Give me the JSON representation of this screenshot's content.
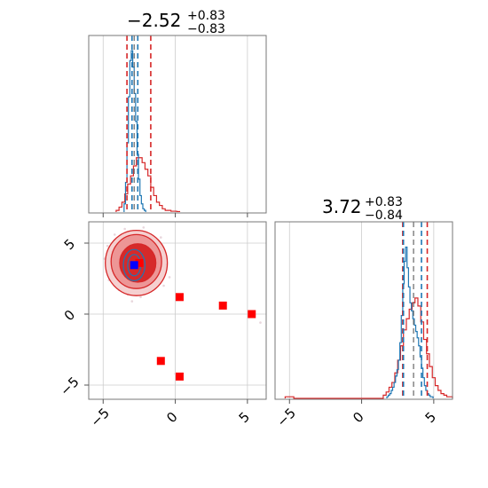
{
  "chart_data": {
    "type": "corner",
    "panels": {
      "hist_x": {
        "title": {
          "main": "−2.52",
          "sup": "+0.83",
          "sub": "−0.83"
        },
        "xlim": [
          -6,
          6.3
        ],
        "grid_x": [
          -5,
          0,
          5
        ],
        "bin_width": 0.2,
        "red_hist": {
          "x": [
            -4.0,
            -3.8,
            -3.6,
            -3.4,
            -3.2,
            -3.0,
            -2.8,
            -2.6,
            -2.4,
            -2.2,
            -2.0,
            -1.8,
            -1.6,
            -1.4,
            -1.2,
            -1.0,
            -0.8,
            -0.6,
            -0.4,
            -0.2,
            0.0,
            0.2
          ],
          "y": [
            0.01,
            0.03,
            0.06,
            0.11,
            0.17,
            0.22,
            0.28,
            0.33,
            0.33,
            0.3,
            0.26,
            0.22,
            0.15,
            0.1,
            0.06,
            0.04,
            0.02,
            0.01,
            0.01,
            0.005,
            0.005,
            0.003
          ]
        },
        "blue_hist": {
          "x": [
            -3.5,
            -3.4,
            -3.3,
            -3.2,
            -3.1,
            -3.0,
            -2.9,
            -2.8,
            -2.7,
            -2.6,
            -2.5,
            -2.4,
            -2.3,
            -2.2,
            -2.1
          ],
          "y": [
            0.05,
            0.18,
            0.42,
            0.7,
            0.92,
            0.98,
            0.88,
            0.72,
            0.55,
            0.35,
            0.2,
            0.1,
            0.05,
            0.02,
            0.01
          ]
        },
        "red_lines": [
          -3.35,
          -1.7
        ],
        "blue_lines": [
          -3.0,
          -2.6
        ],
        "blue_center": -2.85
      },
      "hist_y": {
        "title": {
          "main": "3.72",
          "sup": "+0.83",
          "sub": "−0.84"
        },
        "xlim": [
          -6,
          6.3
        ],
        "grid_x": [
          -5,
          0,
          5
        ],
        "tick_labels": [
          "−5",
          "0",
          "5"
        ],
        "bin_width": 0.2,
        "red_hist": {
          "x": [
            -5.2,
            -5.0,
            -4.8,
            1.6,
            1.8,
            2.0,
            2.2,
            2.4,
            2.6,
            2.8,
            3.0,
            3.2,
            3.4,
            3.6,
            3.8,
            4.0,
            4.2,
            4.4,
            4.6,
            4.8,
            5.0,
            5.2,
            5.4,
            5.6,
            5.8,
            6.0,
            6.2
          ],
          "y": [
            0.01,
            0.01,
            0.01,
            0.02,
            0.04,
            0.07,
            0.1,
            0.16,
            0.24,
            0.33,
            0.43,
            0.5,
            0.56,
            0.6,
            0.63,
            0.58,
            0.48,
            0.37,
            0.28,
            0.2,
            0.13,
            0.08,
            0.05,
            0.03,
            0.02,
            0.01,
            0.01
          ]
        },
        "blue_hist": {
          "x": [
            1.8,
            1.9,
            2.0,
            2.1,
            2.2,
            2.3,
            2.4,
            2.5,
            2.6,
            2.7,
            2.8,
            2.9,
            3.0,
            3.1,
            3.2,
            3.3,
            3.4,
            3.5,
            3.6,
            3.7,
            3.8,
            3.9,
            4.0,
            4.1,
            4.2,
            4.3,
            4.4,
            4.5,
            4.6,
            4.7,
            4.8,
            4.9
          ],
          "y": [
            0.01,
            0.02,
            0.03,
            0.05,
            0.07,
            0.1,
            0.14,
            0.18,
            0.24,
            0.35,
            0.52,
            0.72,
            0.86,
            0.95,
            0.82,
            0.7,
            0.6,
            0.55,
            0.5,
            0.46,
            0.42,
            0.38,
            0.33,
            0.26,
            0.19,
            0.13,
            0.08,
            0.05,
            0.03,
            0.02,
            0.01,
            0.01
          ]
        },
        "red_lines": [
          2.85,
          4.55
        ],
        "blue_lines": [
          2.9,
          4.15
        ],
        "blue_center": 3.6
      },
      "scatter": {
        "xlim": [
          -6,
          6.3
        ],
        "ylim": [
          -6,
          6.5
        ],
        "grid": [
          -5,
          0,
          5
        ],
        "x_tick_labels": [
          "−5",
          "0",
          "5"
        ],
        "y_tick_labels": [
          "−5",
          "0",
          "5"
        ],
        "red_contours": [
          {
            "cx": -2.7,
            "cy": 3.6,
            "rx": 2.15,
            "ry": 2.3,
            "fill": "#f2c4c4",
            "opacity": 0.8
          },
          {
            "cx": -2.7,
            "cy": 3.7,
            "rx": 1.75,
            "ry": 1.9,
            "fill": "#ec8f8f",
            "opacity": 0.9
          },
          {
            "cx": -2.6,
            "cy": 3.6,
            "rx": 1.25,
            "ry": 1.35,
            "fill": "#d62a2a",
            "opacity": 1.0
          }
        ],
        "blue_contours": [
          {
            "cx": -2.85,
            "cy": 3.45,
            "rx": 0.75,
            "ry": 1.1
          },
          {
            "cx": -2.85,
            "cy": 3.45,
            "rx": 0.45,
            "ry": 0.75
          }
        ],
        "red_squares": [
          {
            "x": -2.5,
            "y": 3.6
          },
          {
            "x": 0.3,
            "y": 1.2
          },
          {
            "x": 3.3,
            "y": 0.6
          },
          {
            "x": 5.3,
            "y": 0.0
          },
          {
            "x": -1.0,
            "y": -3.3
          },
          {
            "x": 0.3,
            "y": -4.4
          }
        ],
        "blue_square": {
          "x": -2.85,
          "y": 3.45
        },
        "scatter_dots": [
          {
            "x": -4.9,
            "y": 3.9
          },
          {
            "x": -4.6,
            "y": 2.4
          },
          {
            "x": -4.2,
            "y": 5.6
          },
          {
            "x": -3.9,
            "y": 1.7
          },
          {
            "x": -3.5,
            "y": 6.0
          },
          {
            "x": -3.3,
            "y": 1.4
          },
          {
            "x": -2.4,
            "y": 1.2
          },
          {
            "x": -2.2,
            "y": 6.1
          },
          {
            "x": -1.4,
            "y": 1.8
          },
          {
            "x": -1.0,
            "y": 5.4
          },
          {
            "x": -0.6,
            "y": 3.5
          },
          {
            "x": -0.8,
            "y": 2.0
          },
          {
            "x": -4.7,
            "y": 4.8
          },
          {
            "x": -1.2,
            "y": 4.6
          },
          {
            "x": -3.0,
            "y": 0.9
          },
          {
            "x": 5.9,
            "y": -0.6
          },
          {
            "x": 0.0,
            "y": -4.2
          },
          {
            "x": -0.4,
            "y": 2.6
          }
        ]
      }
    },
    "colors": {
      "red": "#d62728",
      "blue": "#1f77b4",
      "red_marker": "#ff0000",
      "blue_marker": "#0000ff",
      "dot": "#e8d6dc"
    }
  }
}
